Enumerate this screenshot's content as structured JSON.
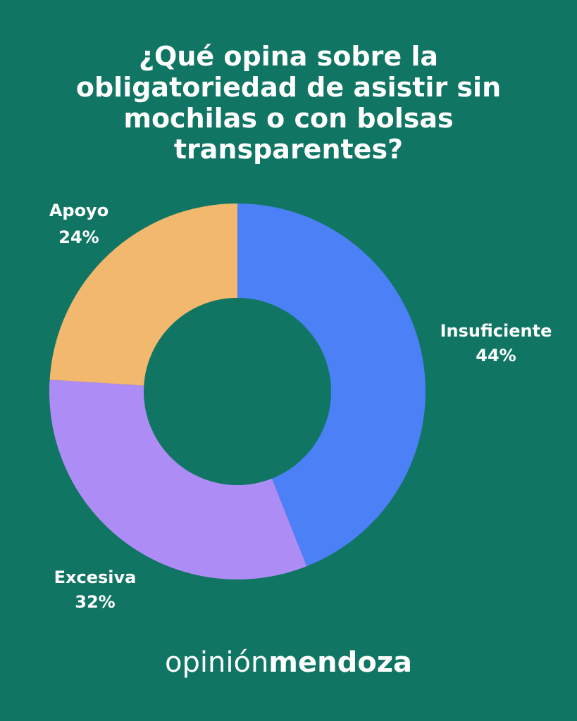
{
  "chart_data": {
    "type": "pie",
    "title": "¿Qué opina sobre la obligatoriedad de asistir sin mochilas o con bolsas transparentes?",
    "slices": [
      {
        "label": "Insuficiente",
        "value": 44,
        "value_label": "44%",
        "color": "#4b80f7"
      },
      {
        "label": "Excesiva",
        "value": 32,
        "value_label": "32%",
        "color": "#ae8cf5"
      },
      {
        "label": "Apoyo",
        "value": 24,
        "value_label": "24%",
        "color": "#f1b86e"
      }
    ],
    "style": "donut",
    "start_angle": "12 o'clock",
    "direction": "clockwise"
  },
  "brand": {
    "light": "opinión",
    "bold": "mendoza"
  },
  "colors": {
    "background": "#107563",
    "text": "#ffffff"
  }
}
